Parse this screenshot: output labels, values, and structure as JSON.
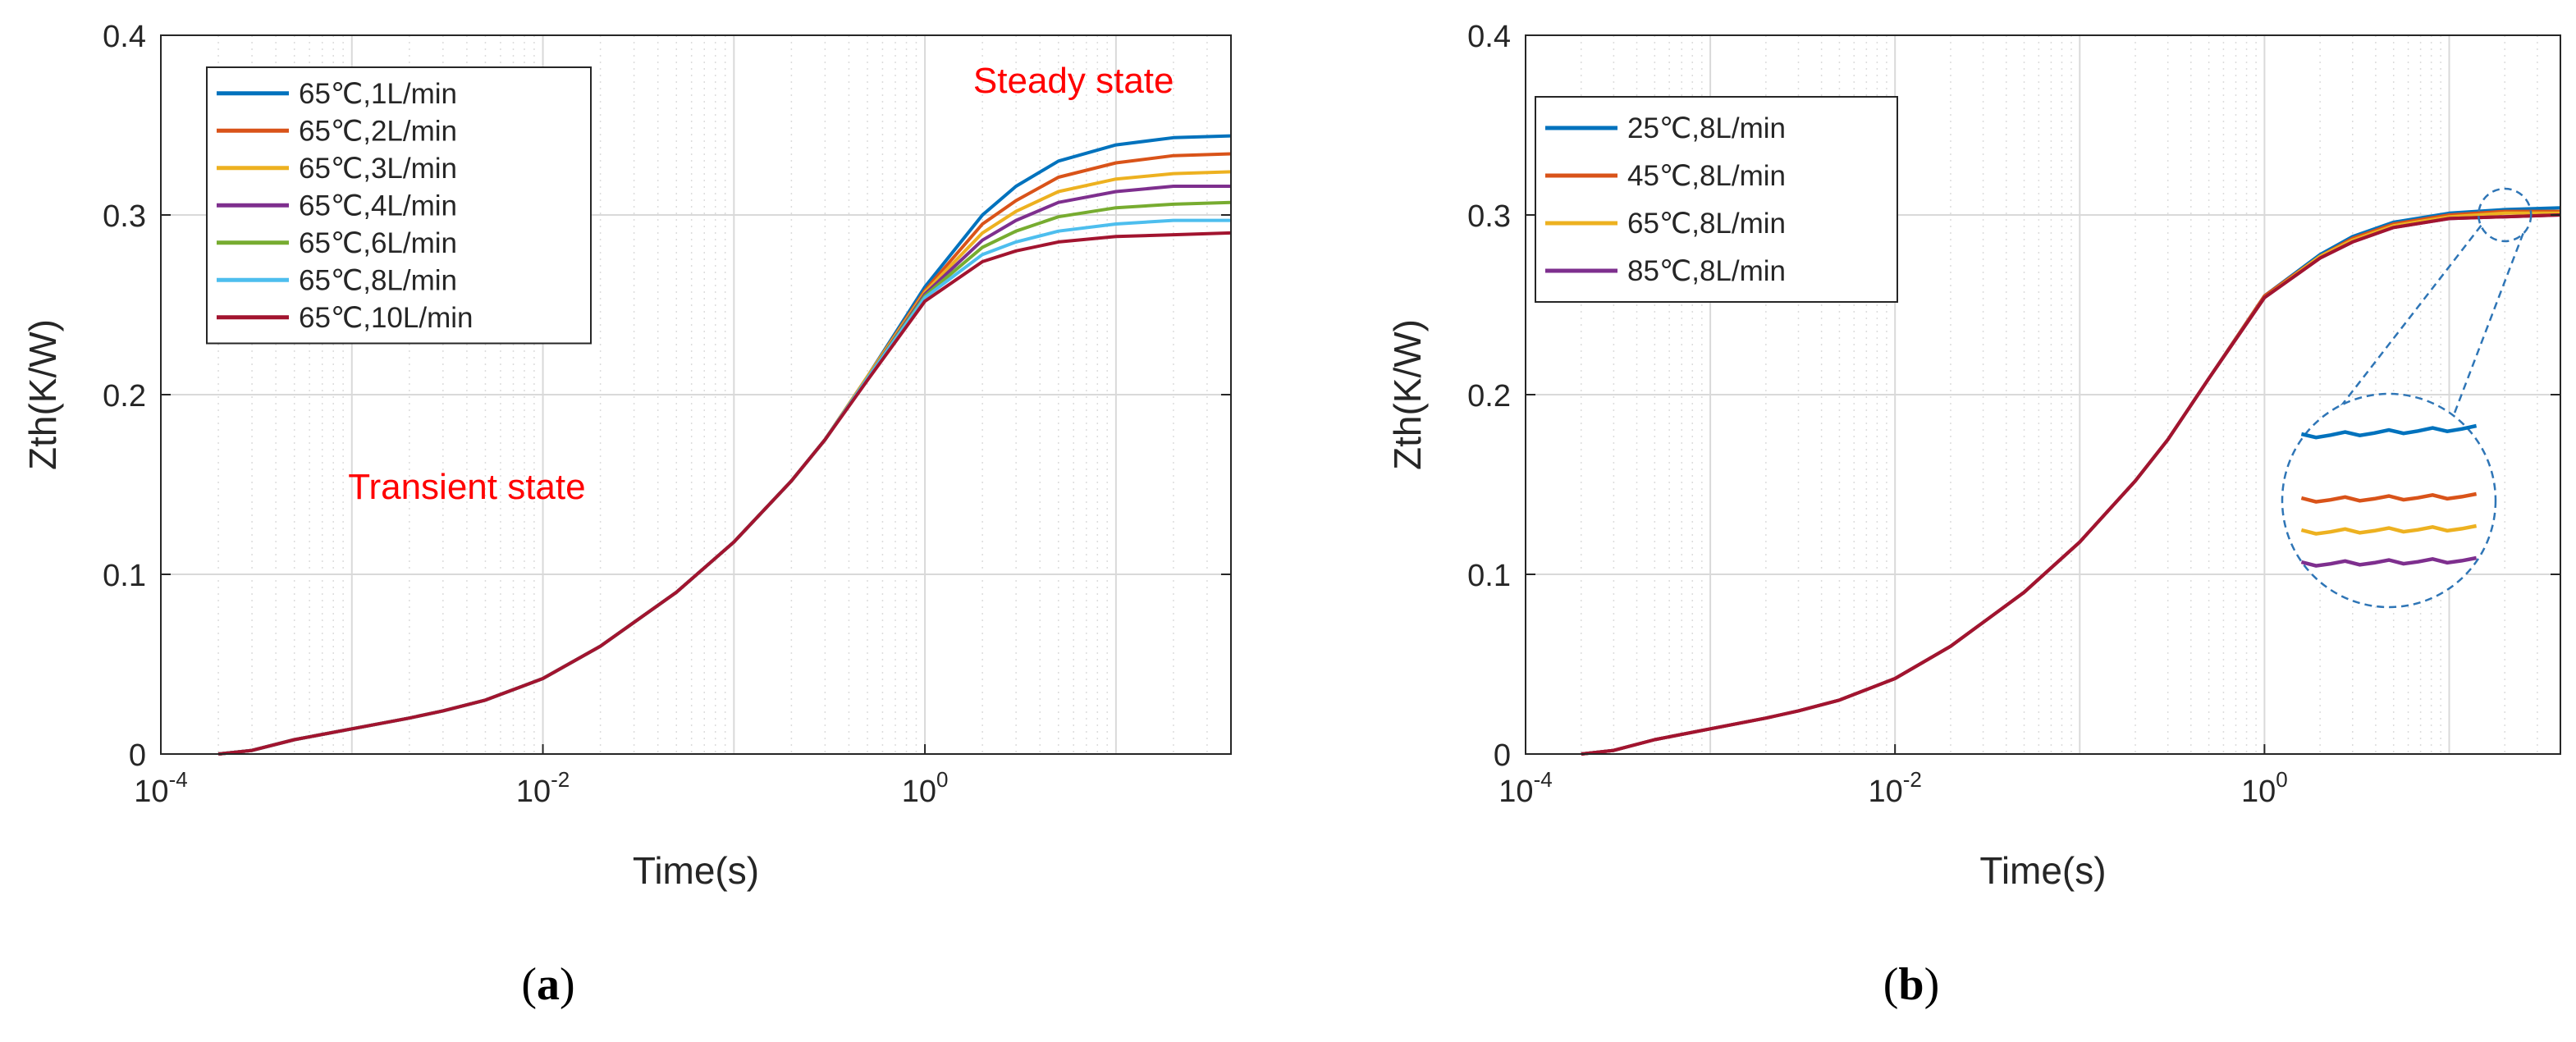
{
  "chart_data": [
    {
      "type": "line",
      "panel_label": "(a)",
      "xlabel": "Time(s)",
      "ylabel": "Zth(K/W)",
      "x_scale": "log",
      "xlim": [
        0.0001,
        40
      ],
      "ylim": [
        0,
        0.4
      ],
      "x_ticks": [
        {
          "value": 0.0001,
          "base": "10",
          "exp": "-4"
        },
        {
          "value": 0.01,
          "base": "10",
          "exp": "-2"
        },
        {
          "value": 1,
          "base": "10",
          "exp": "0"
        }
      ],
      "y_ticks": [
        "0",
        "0.1",
        "0.2",
        "0.3",
        "0.4"
      ],
      "y_tick_values": [
        0,
        0.1,
        0.2,
        0.3,
        0.4
      ],
      "grid": true,
      "legend_position": "top-left",
      "annotations": [
        {
          "text": "Steady state",
          "color": "#FF0000",
          "x": 6,
          "y": 0.368
        },
        {
          "text": "Transient state",
          "color": "#FF0000",
          "x": 0.004,
          "y": 0.142
        }
      ],
      "x": [
        0.0002,
        0.0003,
        0.0005,
        0.001,
        0.002,
        0.003,
        0.005,
        0.01,
        0.02,
        0.05,
        0.1,
        0.2,
        0.3,
        0.5,
        1,
        2,
        3,
        5,
        10,
        20,
        40
      ],
      "series": [
        {
          "name": "65℃,1L/min",
          "color": "#0072BD",
          "values": [
            0,
            0.002,
            0.008,
            0.014,
            0.02,
            0.024,
            0.03,
            0.042,
            0.06,
            0.09,
            0.118,
            0.152,
            0.175,
            0.21,
            0.26,
            0.3,
            0.316,
            0.33,
            0.339,
            0.343,
            0.344
          ]
        },
        {
          "name": "65℃,2L/min",
          "color": "#D95319",
          "values": [
            0,
            0.002,
            0.008,
            0.014,
            0.02,
            0.024,
            0.03,
            0.042,
            0.06,
            0.09,
            0.118,
            0.152,
            0.175,
            0.21,
            0.258,
            0.295,
            0.308,
            0.321,
            0.329,
            0.333,
            0.334
          ]
        },
        {
          "name": "65℃,3L/min",
          "color": "#EDB120",
          "values": [
            0,
            0.002,
            0.008,
            0.014,
            0.02,
            0.024,
            0.03,
            0.042,
            0.06,
            0.09,
            0.118,
            0.152,
            0.175,
            0.21,
            0.257,
            0.29,
            0.302,
            0.313,
            0.32,
            0.323,
            0.324
          ]
        },
        {
          "name": "65℃,4L/min",
          "color": "#7E2F8E",
          "values": [
            0,
            0.002,
            0.008,
            0.014,
            0.02,
            0.024,
            0.03,
            0.042,
            0.06,
            0.09,
            0.118,
            0.152,
            0.175,
            0.209,
            0.256,
            0.286,
            0.297,
            0.307,
            0.313,
            0.316,
            0.316
          ]
        },
        {
          "name": "65℃,6L/min",
          "color": "#77AC30",
          "values": [
            0,
            0.002,
            0.008,
            0.014,
            0.02,
            0.024,
            0.03,
            0.042,
            0.06,
            0.09,
            0.118,
            0.152,
            0.175,
            0.209,
            0.255,
            0.282,
            0.291,
            0.299,
            0.304,
            0.306,
            0.307
          ]
        },
        {
          "name": "65℃,8L/min",
          "color": "#4DBEEE",
          "values": [
            0,
            0.002,
            0.008,
            0.014,
            0.02,
            0.024,
            0.03,
            0.042,
            0.06,
            0.09,
            0.118,
            0.152,
            0.175,
            0.209,
            0.254,
            0.278,
            0.285,
            0.291,
            0.295,
            0.297,
            0.297
          ]
        },
        {
          "name": "65℃,10L/min",
          "color": "#A2142F",
          "values": [
            0,
            0.002,
            0.008,
            0.014,
            0.02,
            0.024,
            0.03,
            0.042,
            0.06,
            0.09,
            0.118,
            0.152,
            0.175,
            0.208,
            0.252,
            0.274,
            0.28,
            0.285,
            0.288,
            0.289,
            0.29
          ]
        }
      ]
    },
    {
      "type": "line",
      "panel_label": "(b)",
      "xlabel": "Time(s)",
      "ylabel": "Zth(K/W)",
      "x_scale": "log",
      "xlim": [
        0.0001,
        40
      ],
      "ylim": [
        0,
        0.4
      ],
      "x_ticks": [
        {
          "value": 0.0001,
          "base": "10",
          "exp": "-4"
        },
        {
          "value": 0.01,
          "base": "10",
          "exp": "-2"
        },
        {
          "value": 1,
          "base": "10",
          "exp": "0"
        }
      ],
      "y_ticks": [
        "0",
        "0.1",
        "0.2",
        "0.3",
        "0.4"
      ],
      "y_tick_values": [
        0,
        0.1,
        0.2,
        0.3,
        0.4
      ],
      "grid": true,
      "legend_position": "top-left",
      "inset": {
        "type": "zoom-circle",
        "target_x": 20,
        "target_y": 0.3
      },
      "x": [
        0.0002,
        0.0003,
        0.0005,
        0.001,
        0.002,
        0.003,
        0.005,
        0.01,
        0.02,
        0.05,
        0.1,
        0.2,
        0.3,
        0.5,
        1,
        2,
        3,
        5,
        10,
        20,
        40
      ],
      "series": [
        {
          "name": "25℃,8L/min",
          "color": "#0072BD",
          "values": [
            0,
            0.002,
            0.008,
            0.014,
            0.02,
            0.024,
            0.03,
            0.042,
            0.06,
            0.09,
            0.118,
            0.152,
            0.175,
            0.209,
            0.255,
            0.278,
            0.288,
            0.296,
            0.301,
            0.303,
            0.304
          ]
        },
        {
          "name": "45℃,8L/min",
          "color": "#D95319",
          "values": [
            0,
            0.002,
            0.008,
            0.014,
            0.02,
            0.024,
            0.03,
            0.042,
            0.06,
            0.09,
            0.118,
            0.152,
            0.175,
            0.209,
            0.255,
            0.277,
            0.287,
            0.295,
            0.3,
            0.302,
            0.302
          ]
        },
        {
          "name": "65℃,8L/min",
          "color": "#EDB120",
          "values": [
            0,
            0.002,
            0.008,
            0.014,
            0.02,
            0.024,
            0.03,
            0.042,
            0.06,
            0.09,
            0.118,
            0.152,
            0.175,
            0.209,
            0.254,
            0.277,
            0.286,
            0.294,
            0.299,
            0.301,
            0.301
          ]
        },
        {
          "name": "85℃,8L/min",
          "color": "#7E2F8E",
          "values": [
            0,
            0.002,
            0.008,
            0.014,
            0.02,
            0.024,
            0.03,
            0.042,
            0.06,
            0.09,
            0.118,
            0.152,
            0.175,
            0.209,
            0.254,
            0.276,
            0.285,
            0.293,
            0.298,
            0.299,
            0.3
          ]
        },
        {
          "name": "",
          "color": "#A2142F",
          "values": [
            0,
            0.002,
            0.008,
            0.014,
            0.02,
            0.024,
            0.03,
            0.042,
            0.06,
            0.09,
            0.118,
            0.152,
            0.175,
            0.209,
            0.254,
            0.276,
            0.285,
            0.293,
            0.298,
            0.299,
            0.3
          ]
        }
      ]
    }
  ]
}
